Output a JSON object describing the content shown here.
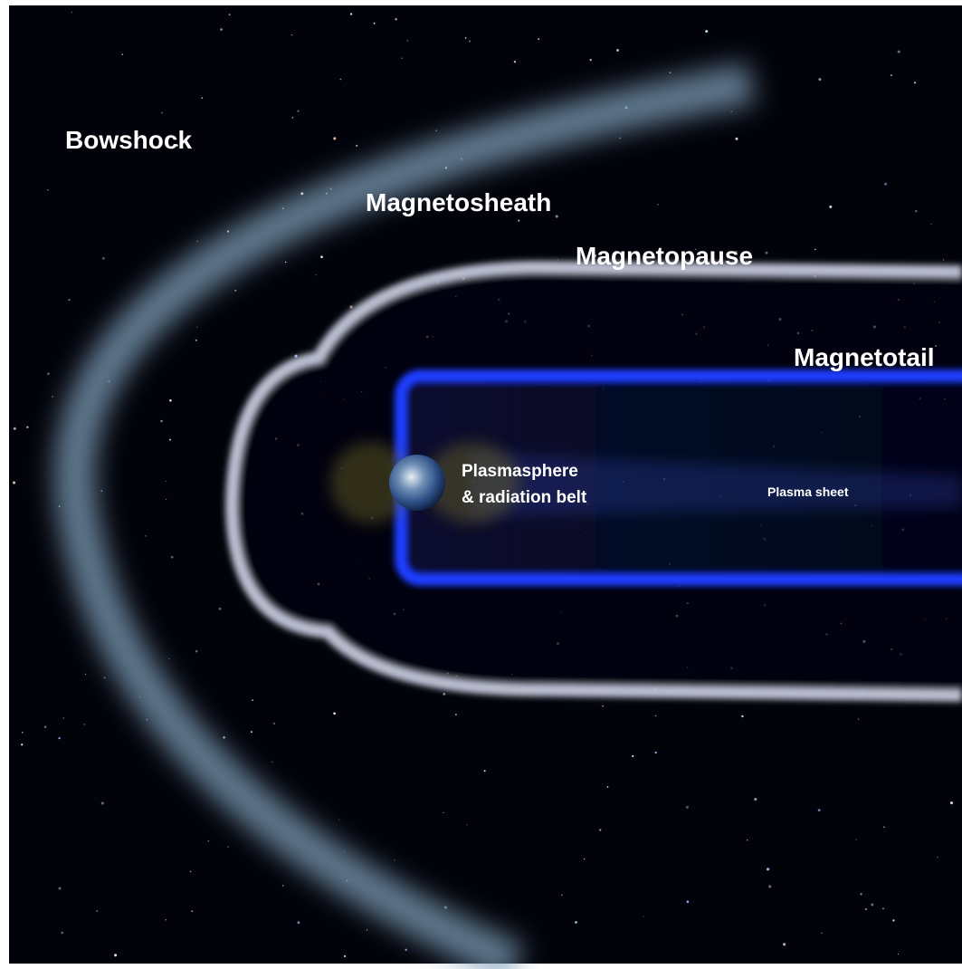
{
  "labels": {
    "bowshock": "Bowshock",
    "magnetosheath": "Magnetosheath",
    "magnetopause": "Magnetopause",
    "magnetotail": "Magnetotail",
    "plasmasphere": [
      "Plasmasphere",
      "& radiation belt"
    ],
    "plasma_sheet": "Plasma sheet"
  }
}
